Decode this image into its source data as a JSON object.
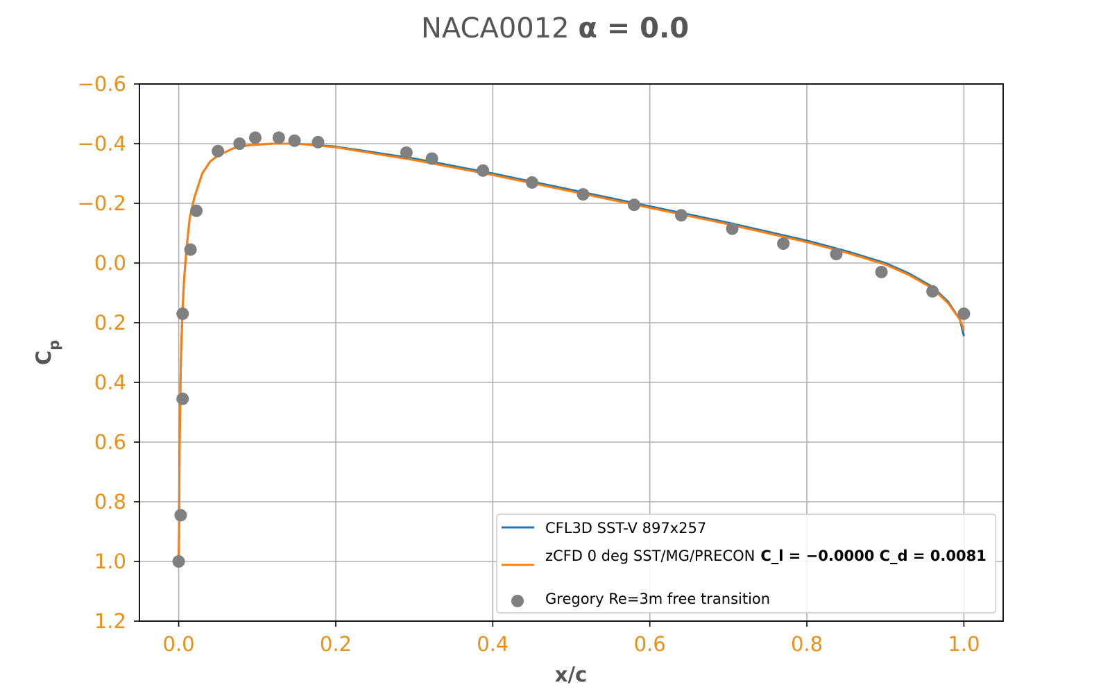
{
  "chart_data": {
    "type": "line",
    "title": {
      "prefix": "NACA0012 ",
      "math": "α = 0.0"
    },
    "xlabel": "x/c",
    "ylabel": {
      "main": "C",
      "sub": "p"
    },
    "xlim": [
      -0.05,
      1.05
    ],
    "ylim": [
      1.2,
      -0.6
    ],
    "y_inverted": true,
    "grid": true,
    "legend_position": "lower-right",
    "xticks": [
      0.0,
      0.2,
      0.4,
      0.6,
      0.8,
      1.0
    ],
    "yticks": [
      -0.6,
      -0.4,
      -0.2,
      0.0,
      0.2,
      0.4,
      0.6,
      0.8,
      1.0,
      1.2
    ],
    "xtick_labels": [
      "0.0",
      "0.2",
      "0.4",
      "0.6",
      "0.8",
      "1.0"
    ],
    "ytick_labels": [
      "−0.6",
      "−0.4",
      "−0.2",
      "0.0",
      "0.2",
      "0.4",
      "0.6",
      "0.8",
      "1.0",
      "1.2"
    ],
    "colors": {
      "tick": "#E8901A",
      "text": "#555555",
      "grid": "#b0b0b0"
    },
    "series": [
      {
        "name": "CFL3D SST-V 897x257",
        "kind": "line",
        "color": "#1f77b4",
        "x": [
          0.0,
          0.0005,
          0.001,
          0.002,
          0.003,
          0.005,
          0.007,
          0.01,
          0.014,
          0.02,
          0.03,
          0.04,
          0.05,
          0.07,
          0.09,
          0.12,
          0.15,
          0.2,
          0.3,
          0.4,
          0.5,
          0.6,
          0.7,
          0.8,
          0.85,
          0.9,
          0.93,
          0.96,
          0.98,
          0.995,
          1.0
        ],
        "y": [
          1.0,
          0.85,
          0.65,
          0.45,
          0.3,
          0.15,
          0.05,
          -0.05,
          -0.15,
          -0.22,
          -0.3,
          -0.34,
          -0.36,
          -0.385,
          -0.395,
          -0.4,
          -0.4,
          -0.39,
          -0.35,
          -0.3,
          -0.245,
          -0.19,
          -0.135,
          -0.075,
          -0.04,
          0.0,
          0.035,
          0.08,
          0.13,
          0.19,
          0.245
        ]
      },
      {
        "name": "zCFD 0 deg SST/MG/PRECON",
        "name_math": "C_l = −0.0000 C_d = 0.0081",
        "kind": "line",
        "color": "#ff7f0e",
        "x": [
          0.0,
          0.0005,
          0.001,
          0.002,
          0.003,
          0.005,
          0.007,
          0.01,
          0.014,
          0.02,
          0.03,
          0.04,
          0.05,
          0.07,
          0.09,
          0.12,
          0.15,
          0.2,
          0.3,
          0.4,
          0.5,
          0.6,
          0.7,
          0.8,
          0.85,
          0.9,
          0.93,
          0.96,
          0.98,
          0.995,
          1.0
        ],
        "y": [
          1.0,
          0.85,
          0.65,
          0.45,
          0.3,
          0.15,
          0.05,
          -0.05,
          -0.15,
          -0.22,
          -0.3,
          -0.34,
          -0.36,
          -0.385,
          -0.395,
          -0.4,
          -0.4,
          -0.388,
          -0.345,
          -0.295,
          -0.24,
          -0.185,
          -0.13,
          -0.07,
          -0.035,
          0.005,
          0.04,
          0.085,
          0.135,
          0.19,
          0.225
        ]
      },
      {
        "name": "Gregory Re=3m free transition",
        "kind": "scatter",
        "color": "#808080",
        "x": [
          0.0,
          0.0025,
          0.005,
          0.005,
          0.015,
          0.0225,
          0.05,
          0.0775,
          0.0975,
          0.1275,
          0.1475,
          0.1775,
          0.29,
          0.3225,
          0.3875,
          0.45,
          0.515,
          0.58,
          0.64,
          0.705,
          0.77,
          0.8375,
          0.895,
          0.96,
          1.0
        ],
        "y": [
          1.0,
          0.845,
          0.455,
          0.17,
          -0.045,
          -0.175,
          -0.375,
          -0.4,
          -0.42,
          -0.42,
          -0.41,
          -0.405,
          -0.37,
          -0.35,
          -0.31,
          -0.27,
          -0.23,
          -0.195,
          -0.16,
          -0.115,
          -0.065,
          -0.03,
          0.03,
          0.095,
          0.17
        ]
      }
    ]
  }
}
